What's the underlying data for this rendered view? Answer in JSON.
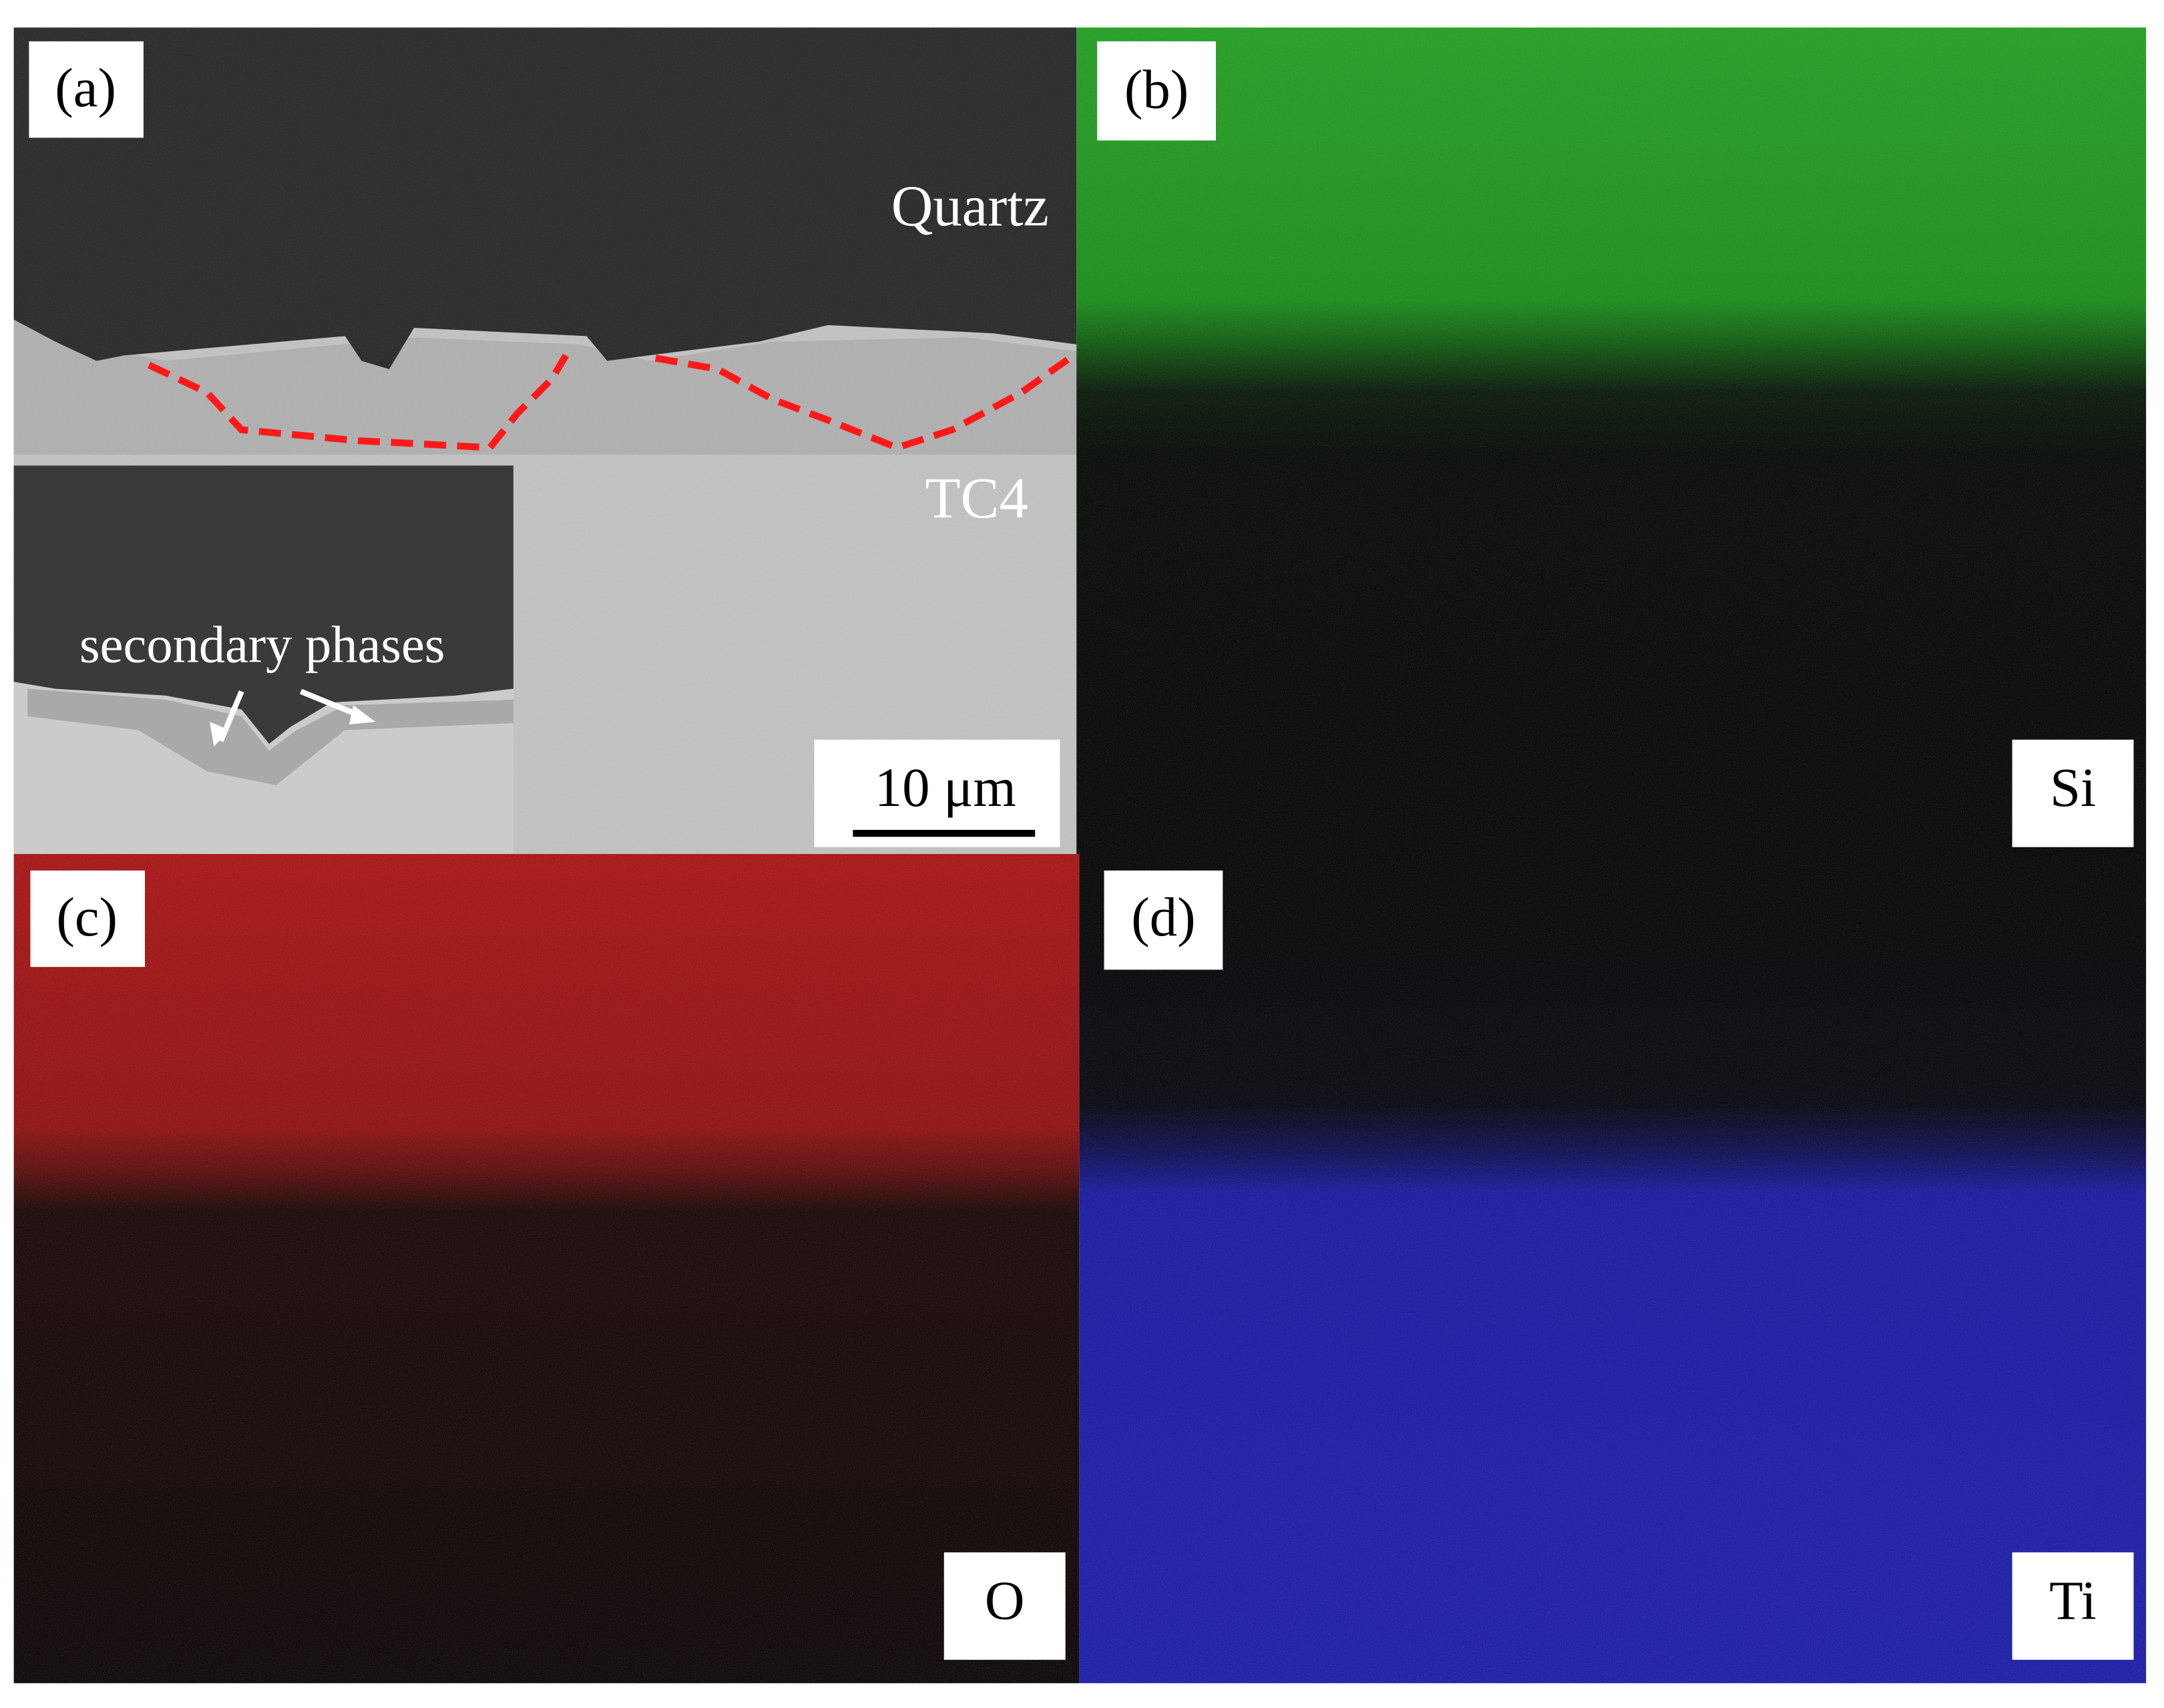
{
  "panels": [
    {
      "label": "(a)",
      "annotations": [
        "Quartz",
        "TC4",
        "secondary phases"
      ],
      "scale_bar": "10 μm"
    },
    {
      "label": "(b)",
      "element": "Si"
    },
    {
      "label": "(c)",
      "element": "O"
    },
    {
      "label": "(d)",
      "element": "Ti"
    }
  ]
}
